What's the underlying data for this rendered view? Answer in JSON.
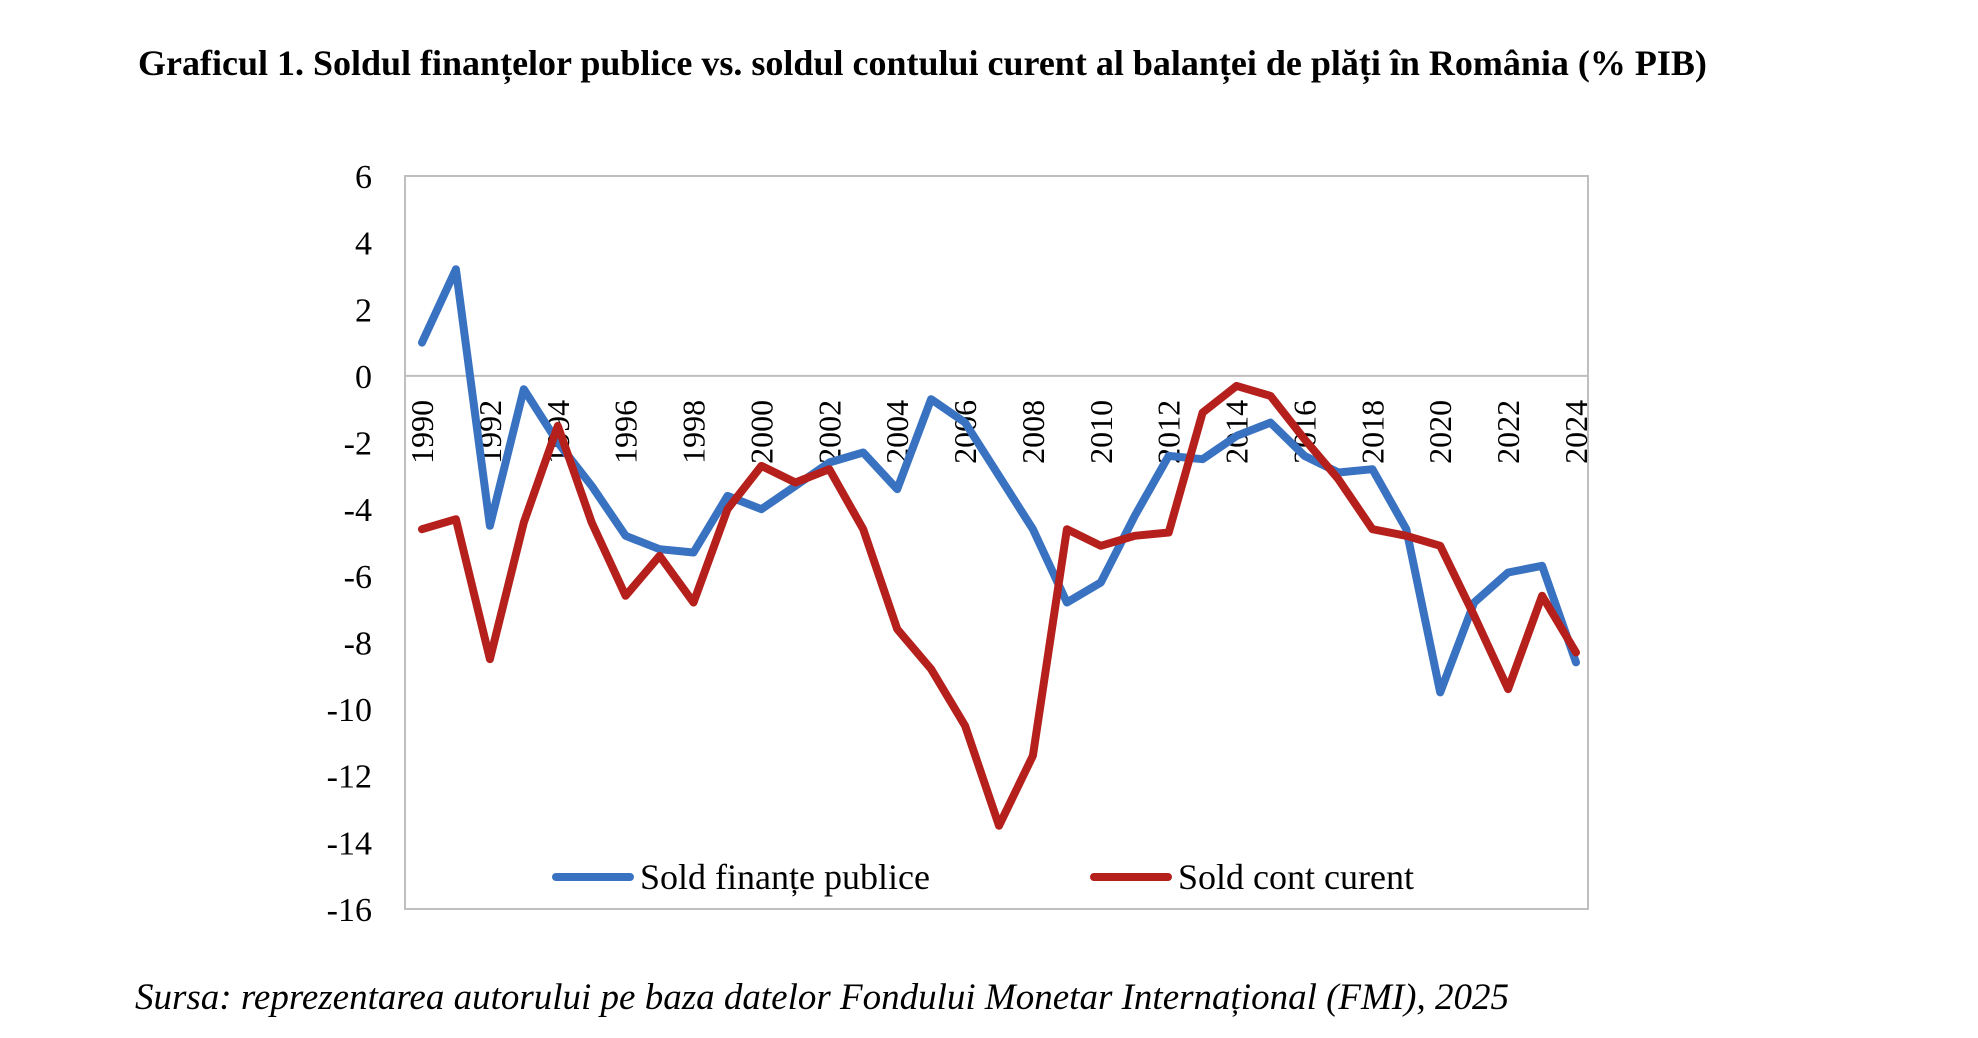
{
  "title": "Graficul 1. Soldul finanțelor publice vs. soldul contului curent al balanței de plăți în România (% PIB)",
  "source": "Sursa: reprezentarea autorului pe baza datelor Fondului Monetar Internațional (FMI), 2025",
  "colors": {
    "series1": "#3a72c2",
    "series2": "#b5201c",
    "frame": "#bfbfbf"
  },
  "chart_data": {
    "type": "line",
    "ylim": [
      -16,
      6
    ],
    "yticks": [
      "6",
      "4",
      "2",
      "0",
      "-2",
      "-4",
      "-6",
      "-8",
      "-10",
      "-12",
      "-14",
      "-16"
    ],
    "x": [
      1990,
      1991,
      1992,
      1993,
      1994,
      1995,
      1996,
      1997,
      1998,
      1999,
      2000,
      2001,
      2002,
      2003,
      2004,
      2005,
      2006,
      2007,
      2008,
      2009,
      2010,
      2011,
      2012,
      2013,
      2014,
      2015,
      2016,
      2017,
      2018,
      2019,
      2020,
      2021,
      2022,
      2023,
      2024
    ],
    "xtick_labels": [
      "1990",
      "1992",
      "1994",
      "1996",
      "1998",
      "2000",
      "2002",
      "2004",
      "2006",
      "2008",
      "2010",
      "2012",
      "2014",
      "2016",
      "2018",
      "2020",
      "2022",
      "2024"
    ],
    "series": [
      {
        "name": "Sold finanțe publice",
        "color": "#3a72c2",
        "values": [
          1.0,
          3.2,
          -4.5,
          -0.4,
          -2.0,
          -3.3,
          -4.8,
          -5.2,
          -5.3,
          -3.6,
          -4.0,
          -3.3,
          -2.6,
          -2.3,
          -3.4,
          -0.7,
          -1.4,
          -3.0,
          -4.6,
          -6.8,
          -6.2,
          -4.2,
          -2.4,
          -2.5,
          -1.8,
          -1.4,
          -2.4,
          -2.9,
          -2.8,
          -4.6,
          -9.5,
          -6.8,
          -5.9,
          -5.7,
          -8.6
        ]
      },
      {
        "name": "Sold cont curent",
        "color": "#b5201c",
        "values": [
          -4.6,
          -4.3,
          -8.5,
          -4.4,
          -1.5,
          -4.4,
          -6.6,
          -5.4,
          -6.8,
          -4.0,
          -2.7,
          -3.2,
          -2.8,
          -4.6,
          -7.6,
          -8.8,
          -10.5,
          -13.5,
          -11.4,
          -4.6,
          -5.1,
          -4.8,
          -4.7,
          -1.1,
          -0.3,
          -0.6,
          -1.9,
          -3.1,
          -4.6,
          -4.8,
          -5.1,
          -7.2,
          -9.4,
          -6.6,
          -8.3
        ]
      }
    ]
  }
}
